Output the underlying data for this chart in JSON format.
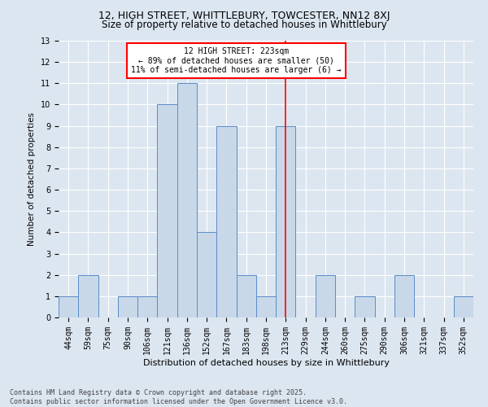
{
  "title1": "12, HIGH STREET, WHITTLEBURY, TOWCESTER, NN12 8XJ",
  "title2": "Size of property relative to detached houses in Whittlebury",
  "xlabel": "Distribution of detached houses by size in Whittlebury",
  "ylabel": "Number of detached properties",
  "categories": [
    "44sqm",
    "59sqm",
    "75sqm",
    "90sqm",
    "106sqm",
    "121sqm",
    "136sqm",
    "152sqm",
    "167sqm",
    "183sqm",
    "198sqm",
    "213sqm",
    "229sqm",
    "244sqm",
    "260sqm",
    "275sqm",
    "290sqm",
    "306sqm",
    "321sqm",
    "337sqm",
    "352sqm"
  ],
  "values": [
    1,
    2,
    0,
    1,
    1,
    10,
    11,
    4,
    9,
    2,
    1,
    9,
    0,
    2,
    0,
    1,
    0,
    2,
    0,
    0,
    1
  ],
  "bar_color": "#c8d8e8",
  "bar_edge_color": "#5b8cc8",
  "background_color": "#dce6f1",
  "grid_color": "#ffffff",
  "red_line_index": 11,
  "annotation_title": "12 HIGH STREET: 223sqm",
  "annotation_line1": "← 89% of detached houses are smaller (50)",
  "annotation_line2": "11% of semi-detached houses are larger (6) →",
  "footer1": "Contains HM Land Registry data © Crown copyright and database right 2025.",
  "footer2": "Contains public sector information licensed under the Open Government Licence v3.0.",
  "ylim": [
    0,
    13
  ],
  "title1_fontsize": 9,
  "title2_fontsize": 8.5,
  "xlabel_fontsize": 8,
  "ylabel_fontsize": 7.5,
  "tick_fontsize": 7,
  "footer_fontsize": 6,
  "ann_fontsize": 7
}
